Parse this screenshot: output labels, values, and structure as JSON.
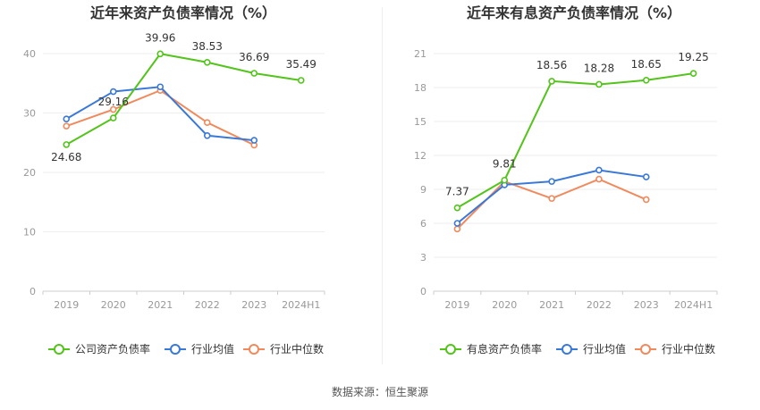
{
  "footer": {
    "source": "数据来源：恒生聚源"
  },
  "chart_data": [
    {
      "type": "line",
      "title": "近年来资产负债率情况（%）",
      "categories": [
        "2019",
        "2020",
        "2021",
        "2022",
        "2023",
        "2024H1"
      ],
      "ylim": [
        0,
        40
      ],
      "yticks": [
        0,
        10,
        20,
        30,
        40
      ],
      "grid": true,
      "legend_position": "bottom",
      "series": [
        {
          "name": "公司资产负债率",
          "color": "#52c41a",
          "labeled": true,
          "values": [
            24.68,
            29.16,
            39.96,
            38.53,
            36.69,
            35.49
          ]
        },
        {
          "name": "行业均值",
          "color": "#3a78d8",
          "labeled": false,
          "values": [
            29.0,
            33.6,
            34.4,
            26.2,
            25.4,
            null
          ]
        },
        {
          "name": "行业中位数",
          "color": "#f08a5d",
          "labeled": false,
          "values": [
            27.8,
            30.6,
            33.8,
            28.4,
            24.6,
            null
          ]
        }
      ]
    },
    {
      "type": "line",
      "title": "近年来有息资产负债率情况（%）",
      "categories": [
        "2019",
        "2020",
        "2021",
        "2022",
        "2023",
        "2024H1"
      ],
      "ylim": [
        0,
        21
      ],
      "yticks": [
        0,
        3,
        6,
        9,
        12,
        15,
        18,
        21
      ],
      "grid": true,
      "legend_position": "bottom",
      "series": [
        {
          "name": "有息资产负债率",
          "color": "#52c41a",
          "labeled": true,
          "values": [
            7.37,
            9.81,
            18.56,
            18.28,
            18.65,
            19.25
          ]
        },
        {
          "name": "行业均值",
          "color": "#3a78d8",
          "labeled": false,
          "values": [
            6.0,
            9.4,
            9.7,
            10.7,
            10.1,
            null
          ]
        },
        {
          "name": "行业中位数",
          "color": "#f08a5d",
          "labeled": false,
          "values": [
            5.5,
            9.7,
            8.2,
            9.9,
            8.1,
            null
          ]
        }
      ]
    }
  ]
}
